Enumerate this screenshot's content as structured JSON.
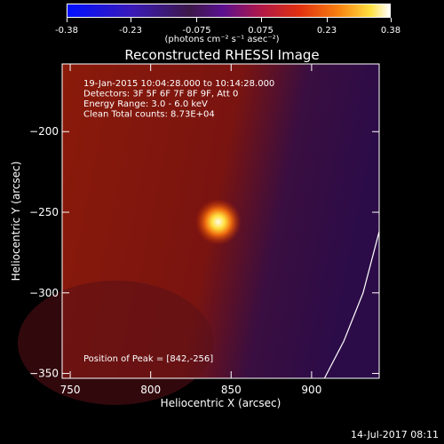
{
  "colorbar": {
    "tick_labels": [
      "-0.38",
      "-0.23",
      "-0.075",
      "0.075",
      "0.23",
      "0.38"
    ],
    "tick_values": [
      -0.38,
      -0.23,
      -0.075,
      0.075,
      0.23,
      0.38
    ],
    "range": [
      -0.38,
      0.38
    ],
    "units": "(photons cm⁻² s⁻¹ asec⁻²)"
  },
  "chart_data": {
    "type": "heatmap",
    "title": "Reconstructed RHESSI Image",
    "xlabel": "Heliocentric X (arcsec)",
    "ylabel": "Heliocentric Y (arcsec)",
    "xlim": [
      745,
      942
    ],
    "ylim": [
      -353,
      -158
    ],
    "x_ticks": [
      750,
      800,
      850,
      900
    ],
    "x_tick_labels": [
      "750",
      "800",
      "850",
      "900"
    ],
    "y_ticks": [
      -200,
      -250,
      -300,
      -350
    ],
    "y_tick_labels": [
      "−200",
      "−250",
      "−300",
      "−350"
    ],
    "peak": [
      842,
      -256
    ],
    "annotations": [
      "19-Jan-2015 10:04:28.000 to 10:14:28.000",
      "Detectors: 3F 5F 6F 7F 8F 9F, Att 0",
      "Energy Range: 3.0 - 6.0 keV",
      "Clean    Total counts: 8.73E+04"
    ],
    "peak_label": "Position of Peak = [842,-256]",
    "limb_curve": [
      [
        908,
        -353
      ],
      [
        920,
        -330
      ],
      [
        932,
        -300
      ],
      [
        942,
        -262
      ]
    ]
  },
  "footer": "14-Jul-2017 08:11"
}
